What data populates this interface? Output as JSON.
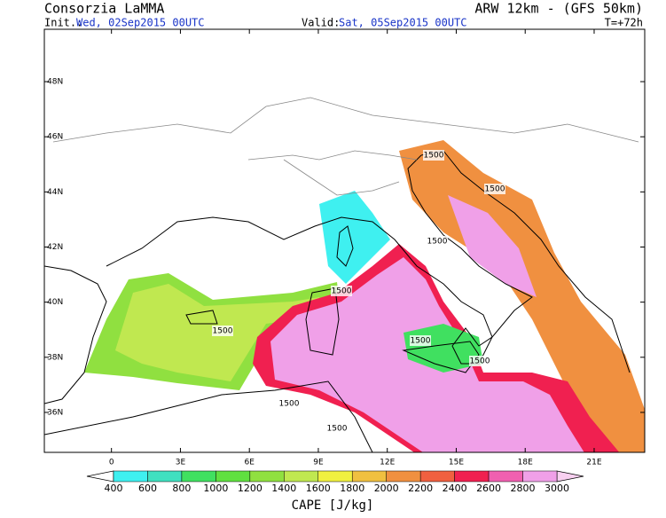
{
  "header": {
    "title": "Consorzia LaMMA",
    "model": "ARW 12km - (GFS 50km)",
    "init_label": "Init.:",
    "init": "Wed, 02Sep2015 00UTC",
    "valid_label": "Valid:",
    "valid": "Sat, 05Sep2015 00UTC",
    "lead": "T=+72h"
  },
  "map": {
    "lonlim": [
      -2.92,
      23.2
    ],
    "latlim": [
      34.55,
      49.9
    ],
    "lat_ticks": [
      {
        "value": 48,
        "label": "48N"
      },
      {
        "value": 46,
        "label": "46N"
      },
      {
        "value": 44,
        "label": "44N"
      },
      {
        "value": 42,
        "label": "42N"
      },
      {
        "value": 40,
        "label": "40N"
      },
      {
        "value": 38,
        "label": "38N"
      },
      {
        "value": 36,
        "label": "36N"
      }
    ],
    "lon_ticks": [
      0,
      {
        "value": 3,
        "label": "3E"
      },
      {
        "value": 6,
        "label": "6E"
      },
      {
        "value": 9,
        "label": "9E"
      },
      {
        "value": 12,
        "label": "12E"
      },
      {
        "value": 15,
        "label": "15E"
      },
      {
        "value": 18,
        "label": "18E"
      },
      {
        "value": 21,
        "label": "21E"
      }
    ],
    "contour_labels": [
      "1500",
      "1500",
      "1500",
      "1500",
      "1500",
      "1500",
      "1500",
      "1500",
      "1500"
    ]
  },
  "colorbar": {
    "label": "CAPE [J/kg]",
    "levels": [
      400,
      600,
      800,
      1000,
      1200,
      1400,
      1600,
      1800,
      2000,
      2200,
      2400,
      2600,
      2800,
      3000
    ],
    "colors": [
      "#3ff0f0",
      "#40e0c0",
      "#40e060",
      "#60e040",
      "#90e040",
      "#c0e850",
      "#f0f040",
      "#f0c040",
      "#f09040",
      "#f06040",
      "#f02050",
      "#f060b0",
      "#f0a0e8"
    ],
    "under_color": "#ffffff",
    "over_color": "#f8d0f0"
  }
}
